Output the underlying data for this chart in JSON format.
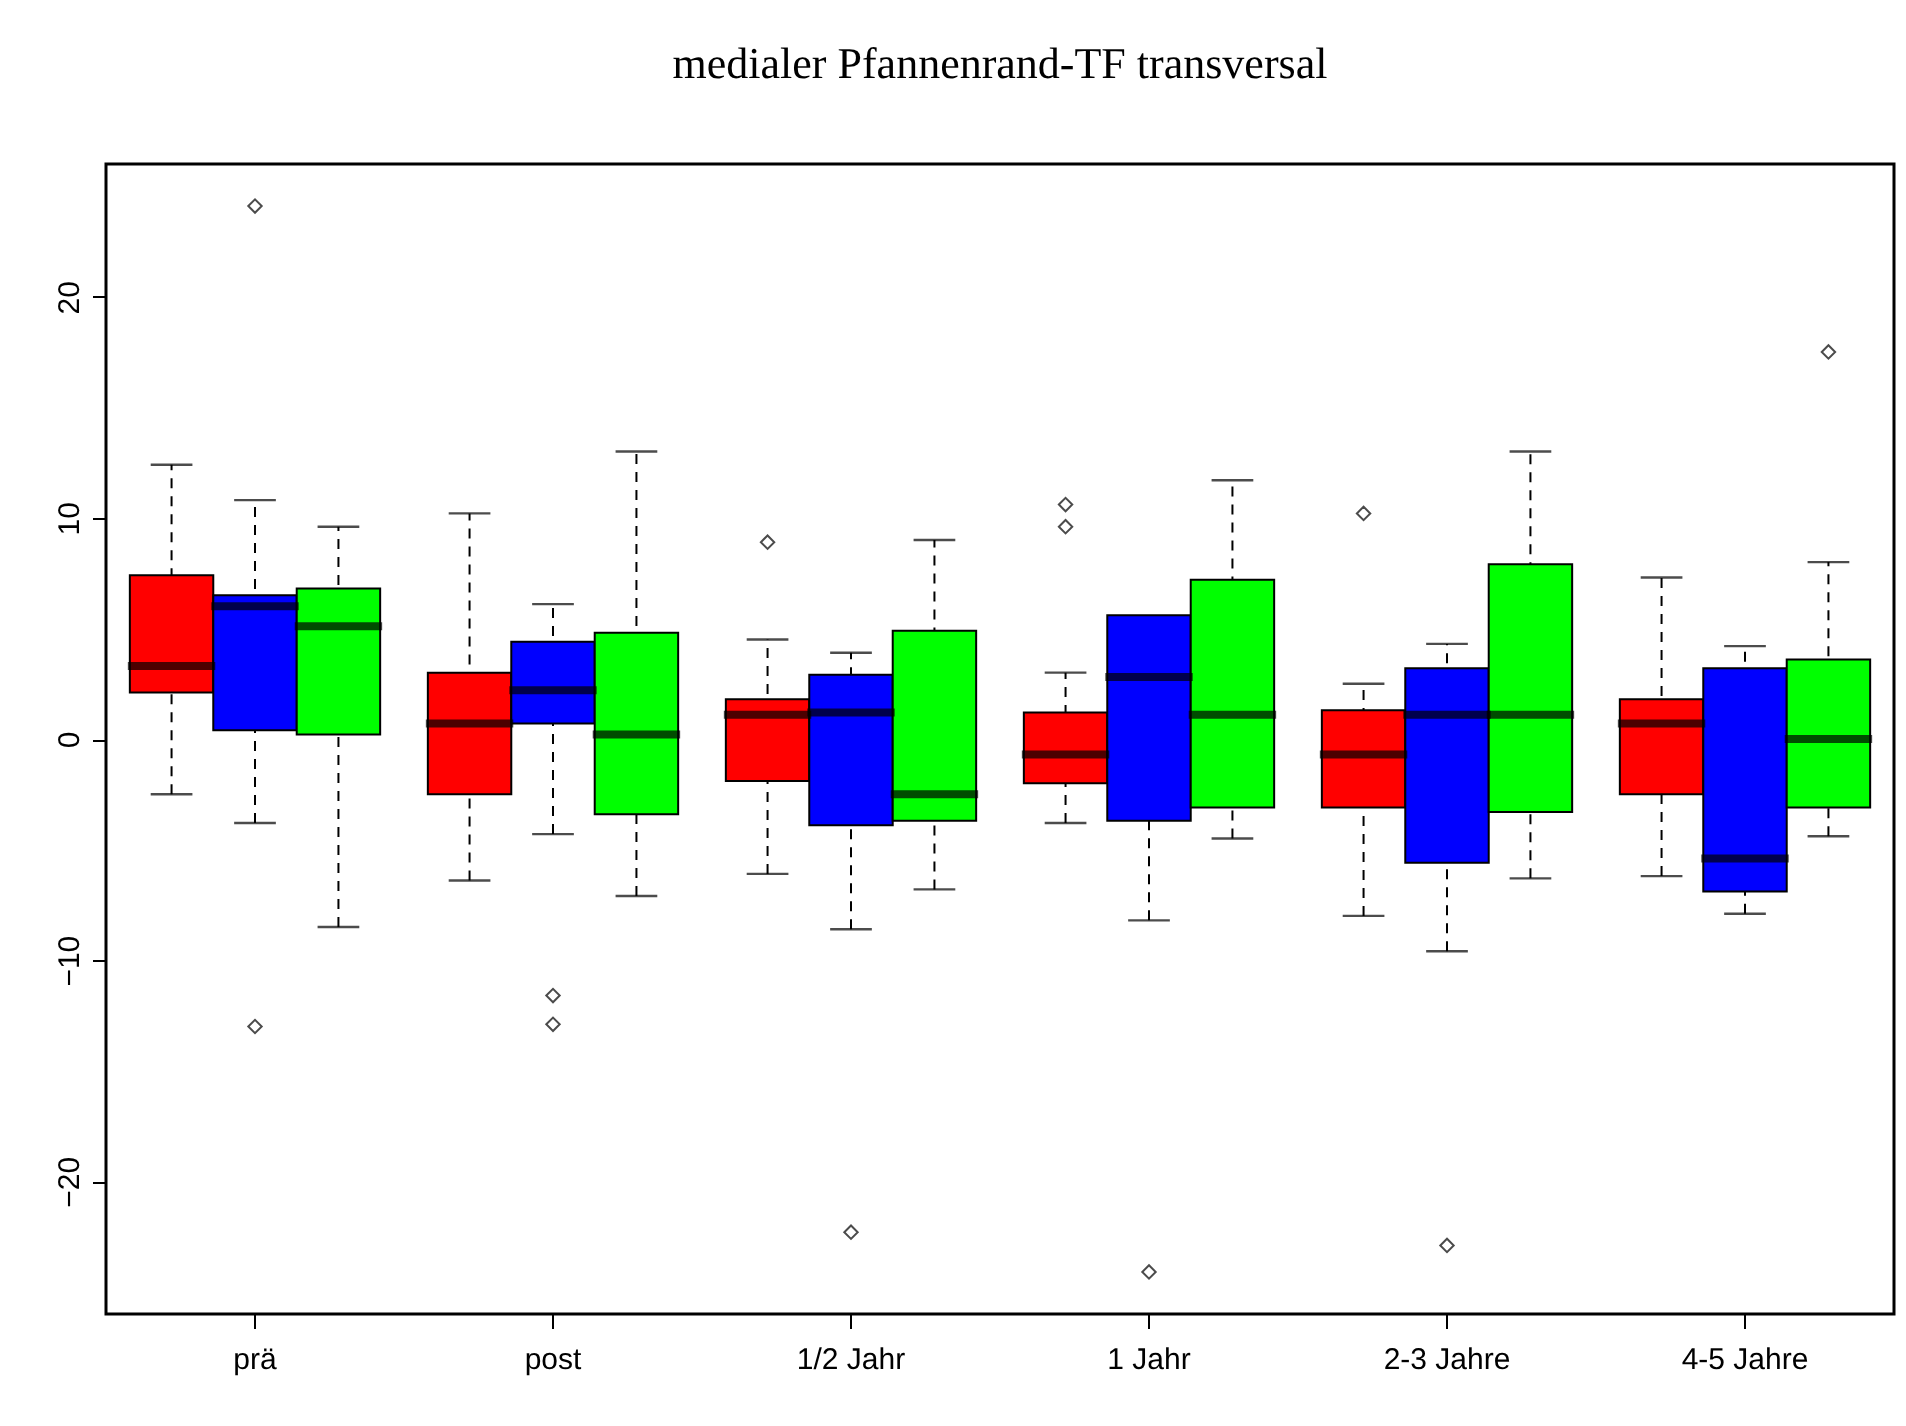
{
  "chart_data": {
    "type": "box",
    "title": "medialer Pfannenrand-TF transversal",
    "categories": [
      "prä",
      "post",
      "1/2 Jahr",
      "1 Jahr",
      "2-3 Jahre",
      "4-5 Jahre"
    ],
    "ylim": [
      -26,
      26
    ],
    "yticks": [
      -20,
      -10,
      0,
      10,
      20
    ],
    "grid": false,
    "legend": false,
    "series": [
      {
        "color": "#ff0000",
        "boxes": [
          {
            "low": -2.5,
            "q1": 2.1,
            "median": 3.3,
            "q3": 7.4,
            "high": 12.4
          },
          {
            "low": -6.4,
            "q1": -2.5,
            "median": 0.7,
            "q3": 3.0,
            "high": 10.2
          },
          {
            "low": -6.1,
            "q1": -1.9,
            "median": 1.1,
            "q3": 1.8,
            "high": 4.5,
            "outliers": [
              8.9
            ]
          },
          {
            "low": -3.8,
            "q1": -2.0,
            "median": -0.7,
            "q3": 1.2,
            "high": 3.0,
            "outliers": [
              10.6,
              9.6
            ]
          },
          {
            "low": -8.0,
            "q1": -3.1,
            "median": -0.7,
            "q3": 1.3,
            "high": 2.5,
            "outliers": [
              10.2
            ]
          },
          {
            "low": -6.2,
            "q1": -2.5,
            "median": 0.7,
            "q3": 1.8,
            "high": 7.3
          }
        ]
      },
      {
        "color": "#0000ff",
        "boxes": [
          {
            "low": -3.8,
            "q1": 0.4,
            "median": 6.0,
            "q3": 6.5,
            "high": 10.8,
            "outliers": [
              24.1,
              -13.0
            ]
          },
          {
            "low": -4.3,
            "q1": 0.7,
            "median": 2.2,
            "q3": 4.4,
            "high": 6.1,
            "outliers": [
              -11.6,
              -12.9
            ]
          },
          {
            "low": -8.6,
            "q1": -3.9,
            "median": 1.2,
            "q3": 2.9,
            "high": 3.9,
            "outliers": [
              -22.3
            ]
          },
          {
            "low": -8.2,
            "q1": -3.7,
            "median": 2.8,
            "q3": 5.6,
            "high": 5.6,
            "outliers": [
              -24.1
            ]
          },
          {
            "low": -9.6,
            "q1": -5.6,
            "median": 1.1,
            "q3": 3.2,
            "high": 4.3,
            "outliers": [
              -22.9
            ]
          },
          {
            "low": -7.9,
            "q1": -6.9,
            "median": -5.4,
            "q3": 3.2,
            "high": 4.2
          }
        ]
      },
      {
        "color": "#00ff00",
        "boxes": [
          {
            "low": -8.5,
            "q1": 0.2,
            "median": 5.1,
            "q3": 6.8,
            "high": 9.6
          },
          {
            "low": -7.1,
            "q1": -3.4,
            "median": 0.2,
            "q3": 4.8,
            "high": 13.0
          },
          {
            "low": -6.8,
            "q1": -3.7,
            "median": -2.5,
            "q3": 4.9,
            "high": 9.0
          },
          {
            "low": -4.5,
            "q1": -3.1,
            "median": 1.1,
            "q3": 7.2,
            "high": 11.7
          },
          {
            "low": -6.3,
            "q1": -3.3,
            "median": 1.1,
            "q3": 7.9,
            "high": 13.0
          },
          {
            "low": -4.4,
            "q1": -3.1,
            "median": 0.0,
            "q3": 3.6,
            "high": 8.0,
            "outliers": [
              17.5
            ]
          }
        ]
      }
    ]
  }
}
